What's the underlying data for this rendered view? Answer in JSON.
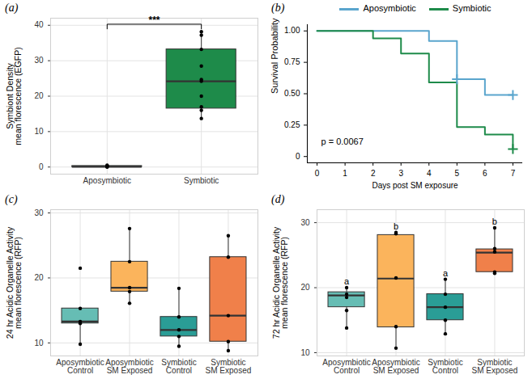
{
  "chart_data": [
    {
      "type": "box",
      "title": "(a)",
      "y_label": "Symbiont Density\nmean florescence (EGFP)",
      "categories": [
        "Aposymbiotic",
        "Symbiotic"
      ],
      "colors": [
        "#4a6e64",
        "#1e8b4a"
      ],
      "boxes": [
        {
          "q1": 0.0,
          "median": 0.1,
          "q3": 0.3,
          "whisker_low": 0.0,
          "whisker_high": 0.5
        },
        {
          "q1": 16.5,
          "median": 24.2,
          "q3": 33.2,
          "whisker_low": 13.7,
          "whisker_high": 38.2
        }
      ],
      "points": [
        [
          0.0,
          0.1,
          0.2,
          0.3,
          0.5
        ],
        [
          38.2,
          37.2,
          33.2,
          28.5,
          24.7,
          24.2,
          20.0,
          17.0,
          16.0,
          13.7
        ]
      ],
      "ylim": [
        -2,
        42
      ],
      "yticks": [
        0,
        10,
        20,
        30,
        40
      ],
      "grid": true,
      "annotations": [
        {
          "text": "***",
          "from": "Aposymbiotic",
          "to": "Symbiotic",
          "y": 40.3
        }
      ]
    },
    {
      "type": "line",
      "title": "(b)",
      "x_label": "Days post SM exposure",
      "y_label": "Survival Probability",
      "xlim": [
        -0.35,
        7.35
      ],
      "xticks": [
        0,
        1,
        2,
        3,
        4,
        5,
        6,
        7
      ],
      "ylim": [
        -0.05,
        1.05
      ],
      "yticks": [
        0,
        0.25,
        {
          "value": 0.5,
          "label": "0.50"
        },
        0.75,
        {
          "value": 1,
          "label": "1.00"
        }
      ],
      "legend": "top",
      "line_style": "step",
      "series": [
        {
          "name": "Aposymbiotic",
          "color": "#5aa5cd",
          "x": [
            0,
            4,
            5,
            6,
            7
          ],
          "values": [
            1,
            0.92,
            0.615,
            0.49,
            0.49
          ],
          "censored_x": [
            5,
            7
          ],
          "censored_values": [
            0.615,
            0.49
          ]
        },
        {
          "name": "Symbiotic",
          "color": "#1e8b4a",
          "x": [
            0,
            2,
            3,
            4,
            5,
            6,
            7
          ],
          "values": [
            1,
            0.94,
            0.82,
            0.59,
            0.235,
            0.175,
            0.06
          ],
          "censored_x": [
            7
          ],
          "censored_values": [
            0.06
          ]
        }
      ],
      "annotations": [
        {
          "text": "p = 0.0067",
          "x": 0.9,
          "y": 0.12
        }
      ]
    },
    {
      "type": "box",
      "title": "(c)",
      "y_label": "24 hr Acidic Organelle Activity\nmean florescence (RFP)",
      "categories": [
        "Aposymbiotic\nControl",
        "Aposymbiotic\nSM Exposed",
        "Symbiotic\nControl",
        "Symbiotic\nSM Exposed"
      ],
      "colors": [
        "#66bdb4",
        "#fbb45c",
        "#2a9d96",
        "#f0804a"
      ],
      "boxes": [
        {
          "q1": 13.0,
          "median": 13.3,
          "q3": 15.3,
          "whisker_low": 9.8,
          "whisker_high": 15.3
        },
        {
          "q1": 17.9,
          "median": 18.5,
          "q3": 22.5,
          "whisker_low": 16.1,
          "whisker_high": 27.6
        },
        {
          "q1": 11.0,
          "median": 12.0,
          "q3": 14.0,
          "whisker_low": 9.5,
          "whisker_high": 18.4
        },
        {
          "q1": 10.2,
          "median": 14.2,
          "q3": 23.2,
          "whisker_low": 8.8,
          "whisker_high": 26.5
        }
      ],
      "points": [
        [
          21.5,
          15.3,
          13.3,
          13.0,
          9.8
        ],
        [
          27.6,
          22.5,
          18.5,
          17.9,
          16.1
        ],
        [
          18.4,
          14.0,
          12.0,
          11.0,
          9.5
        ],
        [
          26.5,
          23.2,
          14.2,
          10.2,
          8.8
        ]
      ],
      "ylim": [
        8,
        30.5
      ],
      "yticks": [
        10,
        20,
        30
      ],
      "grid": true
    },
    {
      "type": "box",
      "title": "(d)",
      "y_label": "72 hr Acidic Organelle Activity\nmean florescence (RFP)",
      "categories": [
        "Aposymbiotic\nControl",
        "Aposymbiotic\nSM Exposed",
        "Symbiotic\nControl",
        "Symbiotic\nSM Exposed"
      ],
      "colors": [
        "#66bdb4",
        "#fbb45c",
        "#2a9d96",
        "#f0804a"
      ],
      "boxes": [
        {
          "q1": 17.0,
          "median": 18.8,
          "q3": 19.3,
          "whisker_low": 13.8,
          "whisker_high": 20.0
        },
        {
          "q1": 13.9,
          "median": 21.4,
          "q3": 28.1,
          "whisker_low": 10.7,
          "whisker_high": 28.5
        },
        {
          "q1": 15.0,
          "median": 17.0,
          "q3": 19.0,
          "whisker_low": 12.9,
          "whisker_high": 21.3
        },
        {
          "q1": 22.4,
          "median": 25.4,
          "q3": 25.9,
          "whisker_low": 22.2,
          "whisker_high": 29.2
        }
      ],
      "points": [
        [
          20.0,
          19.0,
          18.5,
          16.5,
          13.8
        ],
        [
          28.5,
          28.3,
          21.5,
          14.0,
          10.7
        ],
        [
          21.3,
          19.0,
          17.0,
          15.0,
          12.9
        ],
        [
          29.2,
          26.0,
          25.5,
          22.4,
          22.2
        ]
      ],
      "letters": [
        "a",
        "b",
        "a",
        "b"
      ],
      "ylim": [
        9.5,
        32
      ],
      "yticks": [
        10,
        20,
        30
      ],
      "grid": true
    }
  ]
}
